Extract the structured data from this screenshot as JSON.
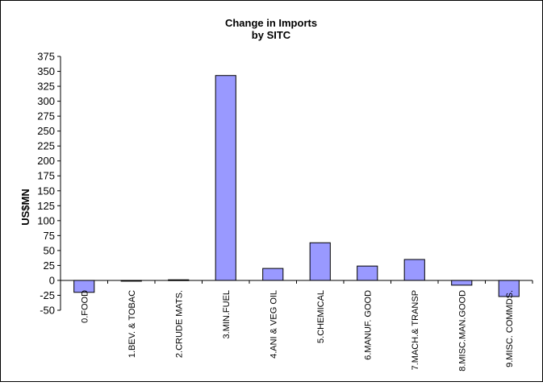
{
  "chart_data": {
    "type": "bar",
    "title": "Change in Imports",
    "subtitle": "by SITC",
    "ylabel": "US$MN",
    "xlabel": "",
    "ylim": [
      -50,
      375
    ],
    "yticks": [
      375,
      350,
      325,
      300,
      275,
      250,
      225,
      200,
      175,
      150,
      125,
      100,
      75,
      50,
      25,
      0,
      -25,
      -50
    ],
    "categories": [
      "0.FOOD",
      "1.BEV. & TOBAC",
      "2.CRUDE MATS.",
      "3.MIN.FUEL",
      "4.ANI & VEG OIL",
      "5.CHEMICAL",
      "6.MANUF. GOOD",
      "7.MACH.& TRANSP",
      "8.MISC.MAN.GOOD",
      "9.MISC. COMMDS."
    ],
    "values": [
      -20,
      -1,
      1,
      343,
      20,
      63,
      24,
      35,
      -8,
      -27
    ],
    "grid": false,
    "legend": "none",
    "colors": {
      "bar_fill": "#9999ff",
      "bar_stroke": "#000000",
      "border": "#000000"
    }
  }
}
